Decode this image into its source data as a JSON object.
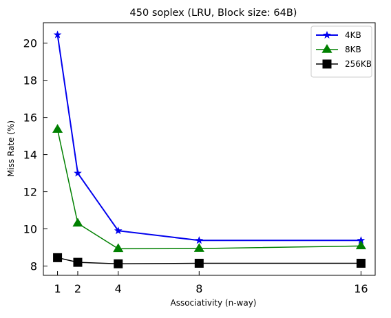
{
  "chart_data": {
    "type": "line",
    "title": "450 soplex (LRU, Block size: 64B)",
    "xlabel": "Associativity (n-way)",
    "ylabel": "Miss Rate (%)",
    "x": [
      1,
      2,
      4,
      8,
      16
    ],
    "xticks": [
      "1",
      "2",
      "4",
      "8",
      "16"
    ],
    "xlim": [
      0.3,
      16.7
    ],
    "yticks": [
      "8",
      "10",
      "12",
      "14",
      "16",
      "18",
      "20"
    ],
    "ylim": [
      7.5,
      21.1
    ],
    "grid": false,
    "legend_position": "top-right",
    "series": [
      {
        "name": "4KB",
        "color": "#0000ee",
        "marker": "star",
        "values": [
          20.45,
          13.0,
          9.9,
          9.38,
          9.38
        ]
      },
      {
        "name": "8KB",
        "color": "#008000",
        "marker": "triangle",
        "values": [
          15.35,
          10.3,
          8.93,
          8.94,
          9.08
        ]
      },
      {
        "name": "256KB",
        "color": "#000000",
        "marker": "square",
        "values": [
          8.45,
          8.2,
          8.12,
          8.15,
          8.15
        ]
      }
    ]
  }
}
